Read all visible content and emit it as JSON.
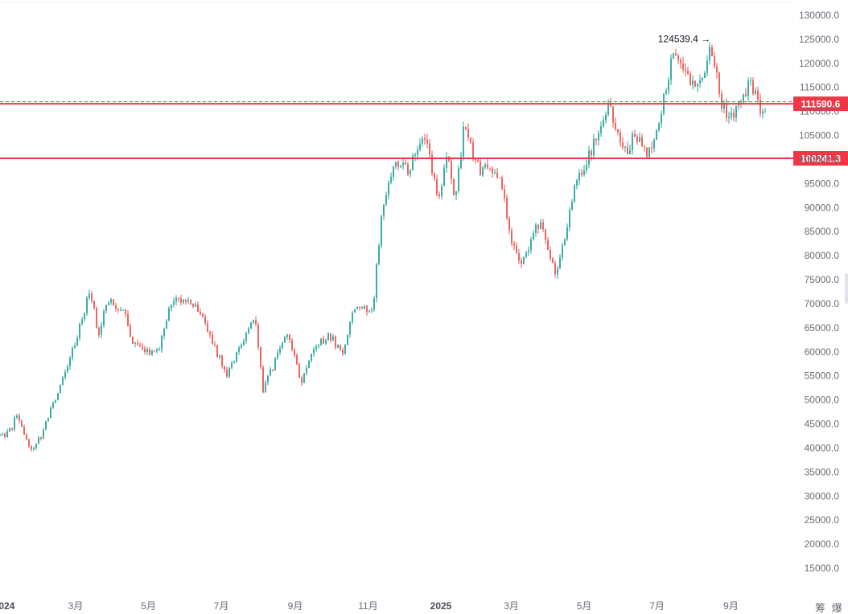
{
  "chart_data": {
    "type": "candlestick",
    "title": "",
    "xlabel": "",
    "ylabel": "",
    "ylim": [
      10000,
      131000
    ],
    "y_ticks": [
      130000.0,
      125000.0,
      120000.0,
      115000.0,
      110000.0,
      105000.0,
      100000.0,
      95000.0,
      90000.0,
      85000.0,
      80000.0,
      75000.0,
      70000.0,
      65000.0,
      60000.0,
      55000.0,
      50000.0,
      45000.0,
      40000.0,
      35000.0,
      30000.0,
      25000.0,
      20000.0,
      15000.0
    ],
    "x_ticks": [
      {
        "label": "2024",
        "date": "2024-01-01",
        "bold": true
      },
      {
        "label": "3月",
        "date": "2024-03-01",
        "bold": false
      },
      {
        "label": "5月",
        "date": "2024-05-01",
        "bold": false
      },
      {
        "label": "7月",
        "date": "2024-07-01",
        "bold": false
      },
      {
        "label": "9月",
        "date": "2024-09-01",
        "bold": false
      },
      {
        "label": "11月",
        "date": "2024-11-01",
        "bold": false
      },
      {
        "label": "2025",
        "date": "2025-01-01",
        "bold": true
      },
      {
        "label": "3月",
        "date": "2025-03-01",
        "bold": false
      },
      {
        "label": "5月",
        "date": "2025-05-01",
        "bold": false
      },
      {
        "label": "7月",
        "date": "2025-07-01",
        "bold": false
      },
      {
        "label": "9月",
        "date": "2025-09-01",
        "bold": false
      }
    ],
    "close_path": [
      [
        "2024-01-01",
        42500
      ],
      [
        "2024-01-08",
        44200
      ],
      [
        "2024-01-11",
        47500
      ],
      [
        "2024-01-23",
        39500
      ],
      [
        "2024-02-01",
        42500
      ],
      [
        "2024-02-15",
        51500
      ],
      [
        "2024-02-29",
        61500
      ],
      [
        "2024-03-13",
        73000
      ],
      [
        "2024-03-20",
        63500
      ],
      [
        "2024-03-27",
        70500
      ],
      [
        "2024-04-10",
        69000
      ],
      [
        "2024-04-17",
        61500
      ],
      [
        "2024-04-30",
        60000
      ],
      [
        "2024-05-10",
        61000
      ],
      [
        "2024-05-21",
        71000
      ],
      [
        "2024-06-05",
        71000
      ],
      [
        "2024-06-20",
        64500
      ],
      [
        "2024-07-05",
        55000
      ],
      [
        "2024-07-14",
        60000
      ],
      [
        "2024-07-29",
        68000
      ],
      [
        "2024-08-05",
        52000
      ],
      [
        "2024-08-15",
        58000
      ],
      [
        "2024-08-25",
        64000
      ],
      [
        "2024-09-06",
        54000
      ],
      [
        "2024-09-18",
        61000
      ],
      [
        "2024-09-30",
        63500
      ],
      [
        "2024-10-10",
        59500
      ],
      [
        "2024-10-20",
        68500
      ],
      [
        "2024-11-05",
        69000
      ],
      [
        "2024-11-12",
        88000
      ],
      [
        "2024-11-22",
        98500
      ],
      [
        "2024-12-05",
        98000
      ],
      [
        "2024-12-17",
        106000
      ],
      [
        "2024-12-30",
        92500
      ],
      [
        "2025-01-06",
        101000
      ],
      [
        "2025-01-13",
        91500
      ],
      [
        "2025-01-20",
        106000
      ],
      [
        "2025-02-03",
        98000
      ],
      [
        "2025-02-20",
        96500
      ],
      [
        "2025-02-28",
        84500
      ],
      [
        "2025-03-10",
        78500
      ],
      [
        "2025-03-25",
        87500
      ],
      [
        "2025-04-08",
        76000
      ],
      [
        "2025-04-22",
        93500
      ],
      [
        "2025-05-09",
        103000
      ],
      [
        "2025-05-22",
        111000
      ],
      [
        "2025-06-05",
        101500
      ],
      [
        "2025-06-13",
        105500
      ],
      [
        "2025-06-22",
        100500
      ],
      [
        "2025-07-01",
        105500
      ],
      [
        "2025-07-14",
        121000
      ],
      [
        "2025-07-25",
        117000
      ],
      [
        "2025-08-05",
        114000
      ],
      [
        "2025-08-14",
        123500
      ],
      [
        "2025-08-25",
        111000
      ],
      [
        "2025-09-01",
        108500
      ],
      [
        "2025-09-18",
        116500
      ],
      [
        "2025-09-26",
        109500
      ],
      [
        "2025-10-01",
        111590
      ]
    ],
    "peak_annotation": {
      "label": "124539.4 →",
      "date": "2025-08-14",
      "value": 124539.4
    },
    "horizontal_lines": [
      {
        "label": "111590.6",
        "value": 111590.6,
        "color": "#f23645"
      },
      {
        "label": "100241.3",
        "value": 100241.3,
        "color": "#f23645"
      }
    ],
    "candle_colors": {
      "up": "#26a69a",
      "down": "#ef5350"
    },
    "grid": false,
    "corner_label": "筹 爆"
  }
}
